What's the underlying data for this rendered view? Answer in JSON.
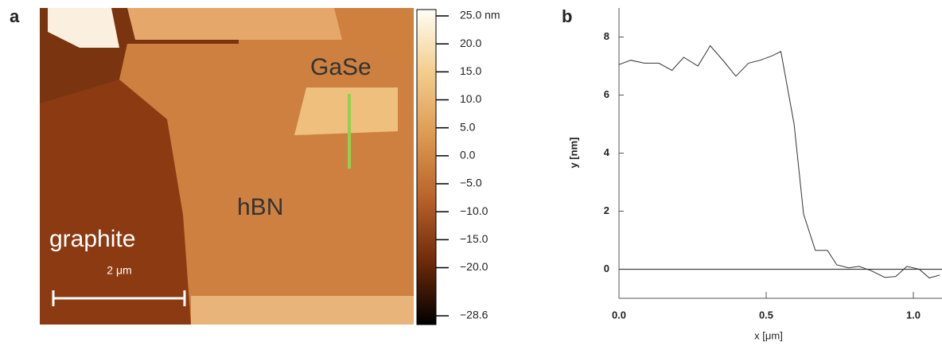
{
  "chart_data": [
    {
      "type": "image",
      "panel_label": "a",
      "annotations": [
        "graphite",
        "hBN",
        "GaSe"
      ],
      "scale_bar": "2 μm",
      "clim": [
        -28.6,
        25.0
      ],
      "cticks": [
        {
          "value": 25.0,
          "label": "25.0 nm"
        },
        {
          "value": 20.0,
          "label": "20.0"
        },
        {
          "value": 15.0,
          "label": "15.0"
        },
        {
          "value": 10.0,
          "label": "10.0"
        },
        {
          "value": 5.0,
          "label": "5.0"
        },
        {
          "value": 0.0,
          "label": "0.0"
        },
        {
          "value": -5.0,
          "label": "−5.0"
        },
        {
          "value": -10.0,
          "label": "−10.0"
        },
        {
          "value": -15.0,
          "label": "−15.0"
        },
        {
          "value": -20.0,
          "label": "−20.0"
        },
        {
          "value": -28.6,
          "label": "−28.6"
        }
      ]
    },
    {
      "type": "line",
      "panel_label": "b",
      "xlabel": "x [μm]",
      "ylabel": "y [nm]",
      "x": [
        0,
        0.04,
        0.086,
        0.135,
        0.18,
        0.22,
        0.268,
        0.31,
        0.357,
        0.397,
        0.44,
        0.48,
        0.52,
        0.55,
        0.595,
        0.627,
        0.667,
        0.708,
        0.74,
        0.78,
        0.816,
        0.857,
        0.903,
        0.94,
        0.978,
        1.02,
        1.054,
        1.09
      ],
      "values": [
        7.05,
        7.2,
        7.1,
        7.1,
        6.85,
        7.3,
        7.0,
        7.7,
        7.15,
        6.65,
        7.1,
        7.2,
        7.35,
        7.5,
        5.0,
        1.9,
        0.65,
        0.65,
        0.15,
        0.05,
        0.1,
        -0.05,
        -0.28,
        -0.25,
        0.1,
        0.0,
        -0.3,
        -0.2
      ],
      "color": "#333333",
      "xlim": [
        0,
        1.1
      ],
      "ylim": [
        -1,
        9
      ],
      "xticks": [
        {
          "value": 0,
          "label": "0.0"
        },
        {
          "value": 0.5,
          "label": "0.5"
        },
        {
          "value": 1.0,
          "label": "1.0"
        }
      ],
      "yticks": [
        0,
        2,
        4,
        6,
        8
      ],
      "reference_line": 0
    }
  ]
}
